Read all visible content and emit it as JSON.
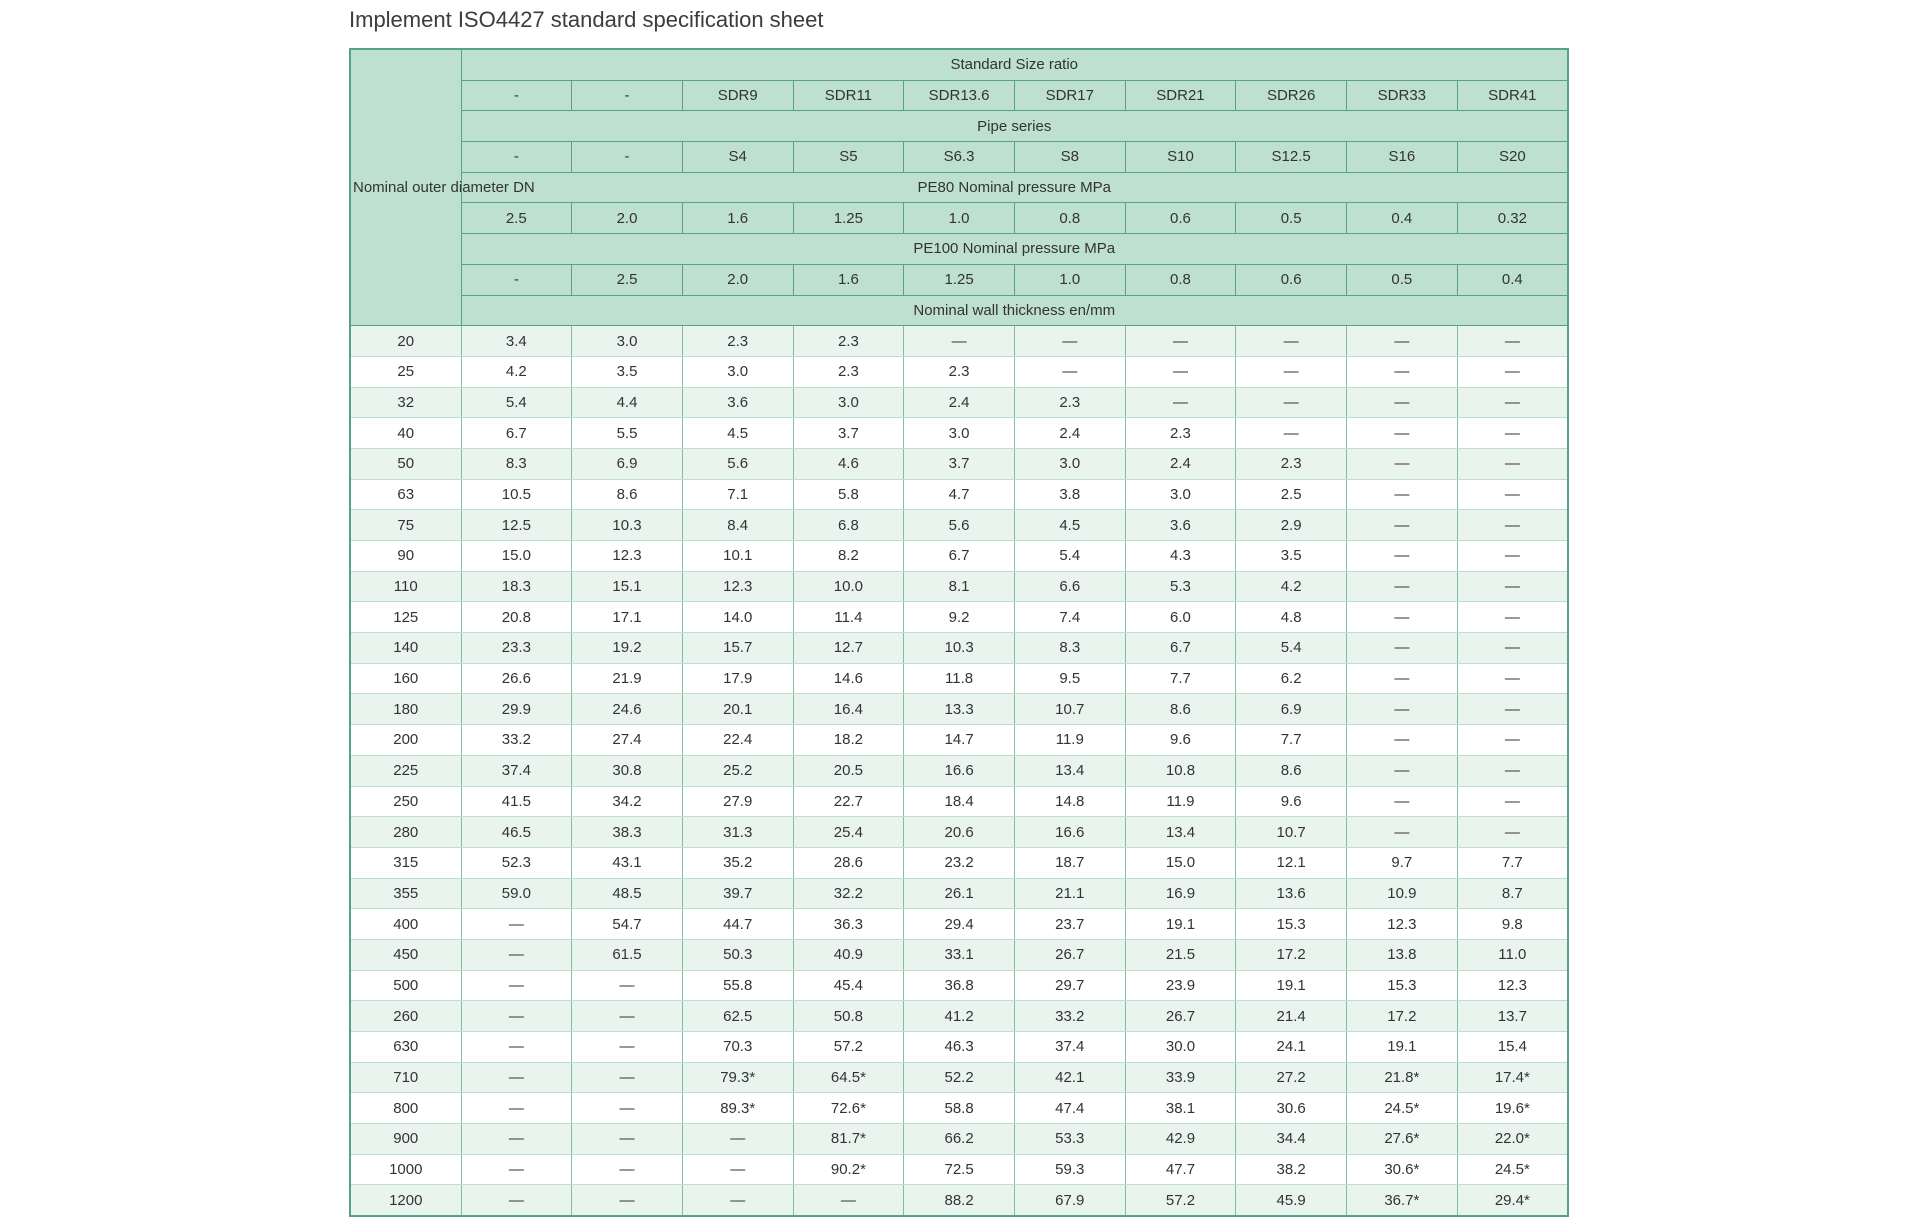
{
  "page": {
    "title": "Implement ISO4427 standard specification sheet"
  },
  "colors": {
    "header_bg": "#bee0d0",
    "stripe_bg": "#e9f4ef",
    "outer_border": "#57a286",
    "grid_vertical": "#84bda4",
    "grid_horizontal": "#bddcce",
    "text": "#333333",
    "title_text": "#3c3c3c"
  },
  "table": {
    "corner_label": "Nominal outer diameter DN",
    "bands": {
      "sdr_label": "Standard Size ratio",
      "sdr": [
        "-",
        "-",
        "SDR9",
        "SDR11",
        "SDR13.6",
        "SDR17",
        "SDR21",
        "SDR26",
        "SDR33",
        "SDR41"
      ],
      "series_label": "Pipe series",
      "series": [
        "-",
        "-",
        "S4",
        "S5",
        "S6.3",
        "S8",
        "S10",
        "S12.5",
        "S16",
        "S20"
      ],
      "pe80_label": "PE80 Nominal pressure MPa",
      "pe80": [
        "2.5",
        "2.0",
        "1.6",
        "1.25",
        "1.0",
        "0.8",
        "0.6",
        "0.5",
        "0.4",
        "0.32"
      ],
      "pe100_label": "PE100 Nominal pressure MPa",
      "pe100": [
        "-",
        "2.5",
        "2.0",
        "1.6",
        "1.25",
        "1.0",
        "0.8",
        "0.6",
        "0.5",
        "0.4"
      ],
      "wall_label": "Nominal wall thickness en/mm"
    },
    "rows": [
      {
        "dn": "20",
        "values": [
          "3.4",
          "3.0",
          "2.3",
          "2.3",
          "—",
          "—",
          "—",
          "—",
          "—",
          "—"
        ]
      },
      {
        "dn": "25",
        "values": [
          "4.2",
          "3.5",
          "3.0",
          "2.3",
          "2.3",
          "—",
          "—",
          "—",
          "—",
          "—"
        ]
      },
      {
        "dn": "32",
        "values": [
          "5.4",
          "4.4",
          "3.6",
          "3.0",
          "2.4",
          "2.3",
          "—",
          "—",
          "—",
          "—"
        ]
      },
      {
        "dn": "40",
        "values": [
          "6.7",
          "5.5",
          "4.5",
          "3.7",
          "3.0",
          "2.4",
          "2.3",
          "—",
          "—",
          "—"
        ]
      },
      {
        "dn": "50",
        "values": [
          "8.3",
          "6.9",
          "5.6",
          "4.6",
          "3.7",
          "3.0",
          "2.4",
          "2.3",
          "—",
          "—"
        ]
      },
      {
        "dn": "63",
        "values": [
          "10.5",
          "8.6",
          "7.1",
          "5.8",
          "4.7",
          "3.8",
          "3.0",
          "2.5",
          "—",
          "—"
        ]
      },
      {
        "dn": "75",
        "values": [
          "12.5",
          "10.3",
          "8.4",
          "6.8",
          "5.6",
          "4.5",
          "3.6",
          "2.9",
          "—",
          "—"
        ]
      },
      {
        "dn": "90",
        "values": [
          "15.0",
          "12.3",
          "10.1",
          "8.2",
          "6.7",
          "5.4",
          "4.3",
          "3.5",
          "—",
          "—"
        ]
      },
      {
        "dn": "110",
        "values": [
          "18.3",
          "15.1",
          "12.3",
          "10.0",
          "8.1",
          "6.6",
          "5.3",
          "4.2",
          "—",
          "—"
        ]
      },
      {
        "dn": "125",
        "values": [
          "20.8",
          "17.1",
          "14.0",
          "11.4",
          "9.2",
          "7.4",
          "6.0",
          "4.8",
          "—",
          "—"
        ]
      },
      {
        "dn": "140",
        "values": [
          "23.3",
          "19.2",
          "15.7",
          "12.7",
          "10.3",
          "8.3",
          "6.7",
          "5.4",
          "—",
          "—"
        ]
      },
      {
        "dn": "160",
        "values": [
          "26.6",
          "21.9",
          "17.9",
          "14.6",
          "11.8",
          "9.5",
          "7.7",
          "6.2",
          "—",
          "—"
        ]
      },
      {
        "dn": "180",
        "values": [
          "29.9",
          "24.6",
          "20.1",
          "16.4",
          "13.3",
          "10.7",
          "8.6",
          "6.9",
          "—",
          "—"
        ]
      },
      {
        "dn": "200",
        "values": [
          "33.2",
          "27.4",
          "22.4",
          "18.2",
          "14.7",
          "11.9",
          "9.6",
          "7.7",
          "—",
          "—"
        ]
      },
      {
        "dn": "225",
        "values": [
          "37.4",
          "30.8",
          "25.2",
          "20.5",
          "16.6",
          "13.4",
          "10.8",
          "8.6",
          "—",
          "—"
        ]
      },
      {
        "dn": "250",
        "values": [
          "41.5",
          "34.2",
          "27.9",
          "22.7",
          "18.4",
          "14.8",
          "11.9",
          "9.6",
          "—",
          "—"
        ]
      },
      {
        "dn": "280",
        "values": [
          "46.5",
          "38.3",
          "31.3",
          "25.4",
          "20.6",
          "16.6",
          "13.4",
          "10.7",
          "—",
          "—"
        ]
      },
      {
        "dn": "315",
        "values": [
          "52.3",
          "43.1",
          "35.2",
          "28.6",
          "23.2",
          "18.7",
          "15.0",
          "12.1",
          "9.7",
          "7.7"
        ]
      },
      {
        "dn": "355",
        "values": [
          "59.0",
          "48.5",
          "39.7",
          "32.2",
          "26.1",
          "21.1",
          "16.9",
          "13.6",
          "10.9",
          "8.7"
        ]
      },
      {
        "dn": "400",
        "values": [
          "—",
          "54.7",
          "44.7",
          "36.3",
          "29.4",
          "23.7",
          "19.1",
          "15.3",
          "12.3",
          "9.8"
        ]
      },
      {
        "dn": "450",
        "values": [
          "—",
          "61.5",
          "50.3",
          "40.9",
          "33.1",
          "26.7",
          "21.5",
          "17.2",
          "13.8",
          "11.0"
        ]
      },
      {
        "dn": "500",
        "values": [
          "—",
          "—",
          "55.8",
          "45.4",
          "36.8",
          "29.7",
          "23.9",
          "19.1",
          "15.3",
          "12.3"
        ]
      },
      {
        "dn": "260",
        "values": [
          "—",
          "—",
          "62.5",
          "50.8",
          "41.2",
          "33.2",
          "26.7",
          "21.4",
          "17.2",
          "13.7"
        ]
      },
      {
        "dn": "630",
        "values": [
          "—",
          "—",
          "70.3",
          "57.2",
          "46.3",
          "37.4",
          "30.0",
          "24.1",
          "19.1",
          "15.4"
        ]
      },
      {
        "dn": "710",
        "values": [
          "—",
          "—",
          "79.3*",
          "64.5*",
          "52.2",
          "42.1",
          "33.9",
          "27.2",
          "21.8*",
          "17.4*"
        ]
      },
      {
        "dn": "800",
        "values": [
          "—",
          "—",
          "89.3*",
          "72.6*",
          "58.8",
          "47.4",
          "38.1",
          "30.6",
          "24.5*",
          "19.6*"
        ]
      },
      {
        "dn": "900",
        "values": [
          "—",
          "—",
          "—",
          "81.7*",
          "66.2",
          "53.3",
          "42.9",
          "34.4",
          "27.6*",
          "22.0*"
        ]
      },
      {
        "dn": "1000",
        "values": [
          "—",
          "—",
          "—",
          "90.2*",
          "72.5",
          "59.3",
          "47.7",
          "38.2",
          "30.6*",
          "24.5*"
        ]
      },
      {
        "dn": "1200",
        "values": [
          "—",
          "—",
          "—",
          "—",
          "88.2",
          "67.9",
          "57.2",
          "45.9",
          "36.7*",
          "29.4*"
        ]
      }
    ]
  }
}
